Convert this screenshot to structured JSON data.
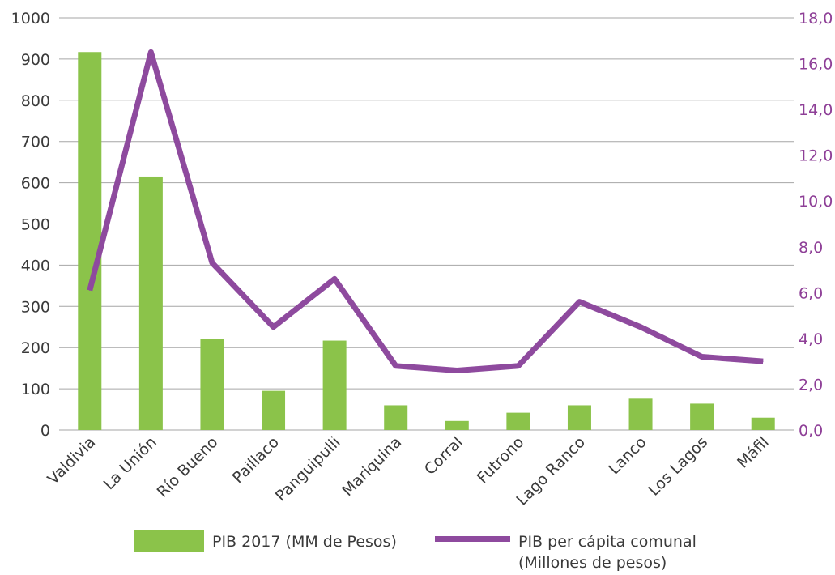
{
  "chart_data": {
    "type": "bar",
    "categories": [
      "Valdivia",
      "La Unión",
      "Río Bueno",
      "Paillaco",
      "Panguipulli",
      "Mariquina",
      "Corral",
      "Futrono",
      "Lago Ranco",
      "Lanco",
      "Los Lagos",
      "Máfil"
    ],
    "series": [
      {
        "name": "PIB 2017 (MM de Pesos)",
        "type": "bar",
        "axis": "left",
        "color": "#8bc34a",
        "values": [
          917,
          615,
          222,
          95,
          217,
          60,
          22,
          42,
          60,
          76,
          64,
          30
        ]
      },
      {
        "name_lines": [
          "PIB per cápita comunal",
          "(Millones de pesos)"
        ],
        "type": "line",
        "axis": "right",
        "color": "#8e4a9e",
        "values": [
          6.1,
          16.5,
          7.3,
          4.5,
          6.6,
          2.8,
          2.6,
          2.8,
          5.6,
          4.5,
          3.2,
          3.0
        ]
      }
    ],
    "y_left": {
      "ylim": [
        0,
        1000
      ],
      "ticks": [
        "0",
        "100",
        "200",
        "300",
        "400",
        "500",
        "600",
        "700",
        "800",
        "900",
        "1000"
      ]
    },
    "y_right": {
      "ylim": [
        0,
        18
      ],
      "ticks": [
        "0,0",
        "2,0",
        "4,0",
        "6,0",
        "8,0",
        "10,0",
        "12,0",
        "14,0",
        "16,0",
        "18,0"
      ]
    },
    "grid": true,
    "legend": "bottom"
  },
  "legend": {
    "bar_label": "PIB 2017 (MM de Pesos)",
    "line_label_1": "PIB per cápita comunal",
    "line_label_2": "(Millones de pesos)"
  }
}
